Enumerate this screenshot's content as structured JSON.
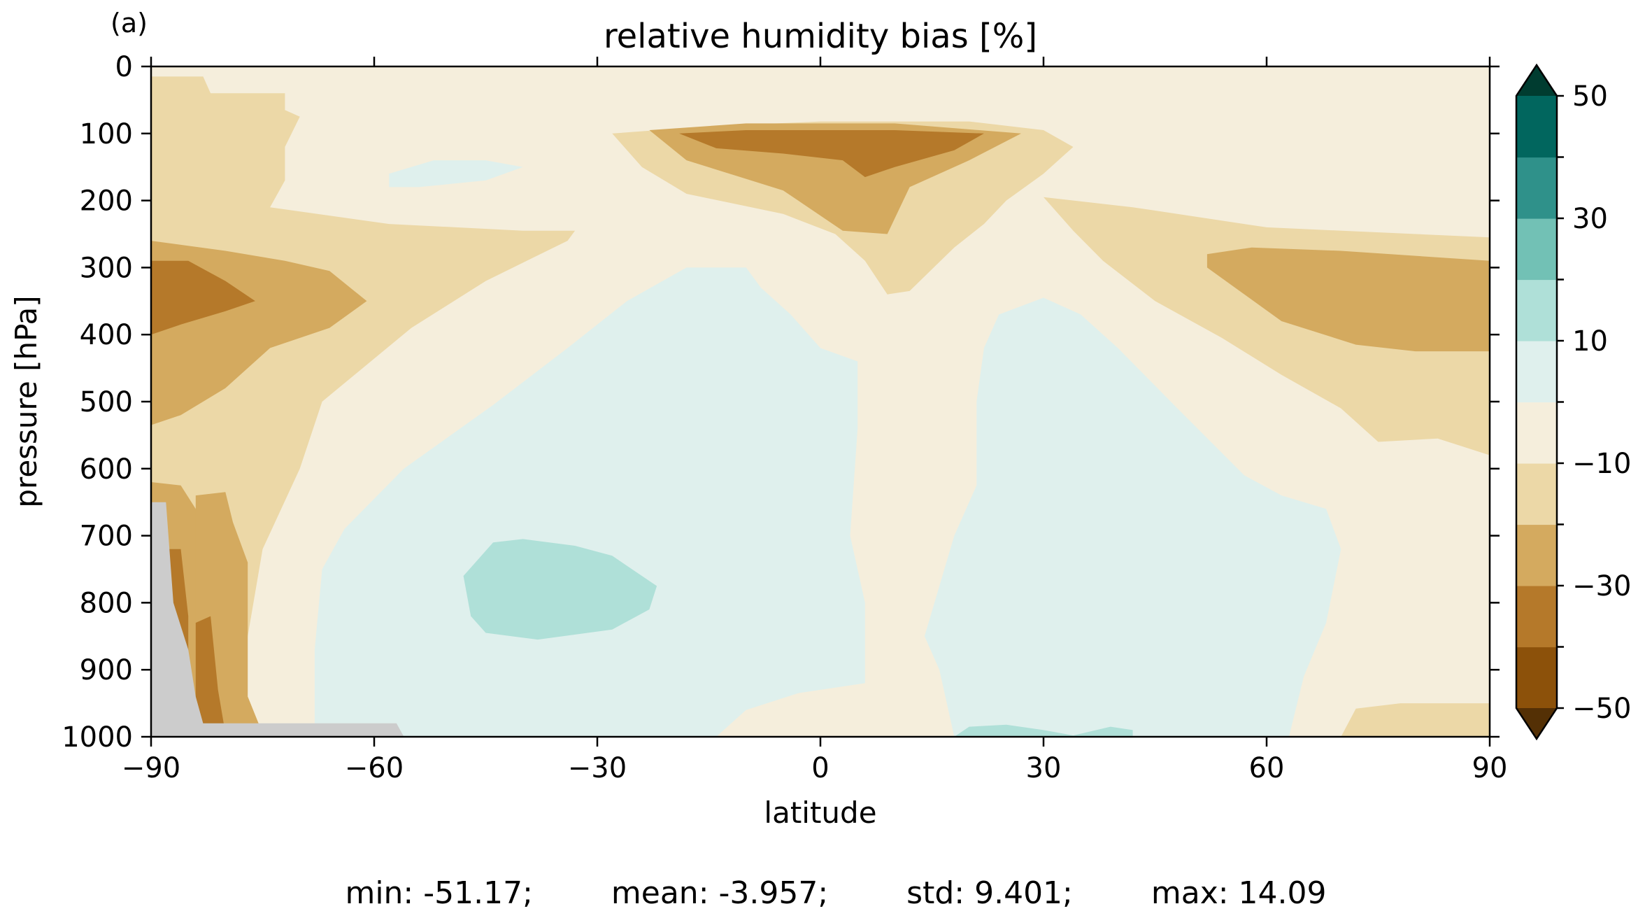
{
  "panel_label": "(a)",
  "chart_data": {
    "type": "contourf",
    "title": "relative humidity bias [%]",
    "xlabel": "latitude",
    "ylabel": "pressure [hPa]",
    "xlim": [
      -90,
      90
    ],
    "ylim": [
      1000,
      0
    ],
    "xticks": [
      "−90",
      "−60",
      "−30",
      "0",
      "30",
      "60",
      "90"
    ],
    "xtick_values": [
      -90,
      -60,
      -30,
      0,
      30,
      60,
      90
    ],
    "yticks": [
      "0",
      "100",
      "200",
      "300",
      "400",
      "500",
      "600",
      "700",
      "800",
      "900",
      "1000"
    ],
    "ytick_values": [
      0,
      100,
      200,
      300,
      400,
      500,
      600,
      700,
      800,
      900,
      1000
    ],
    "colorbar": {
      "levels": [
        -50,
        -40,
        -30,
        -20,
        -10,
        0,
        10,
        20,
        30,
        40,
        50
      ],
      "ticks": [
        "50",
        "30",
        "10",
        "−10",
        "−30",
        "−50"
      ],
      "tick_values": [
        50,
        30,
        10,
        -10,
        -30,
        -50
      ],
      "extend": "both",
      "colors": [
        "#543005",
        "#8c510a",
        "#b5792a",
        "#d4aa5f",
        "#ecd8a7",
        "#f5eedc",
        "#dff0ed",
        "#afe0d8",
        "#72c1b5",
        "#2f918a",
        "#01665e",
        "#003c30"
      ]
    },
    "masked_color": "#cccccc",
    "regions": [
      {
        "level": -20,
        "points": [
          [
            -90,
            15
          ],
          [
            -83,
            15
          ],
          [
            -82,
            40
          ],
          [
            -72,
            40
          ],
          [
            -72,
            65
          ],
          [
            -70,
            75
          ],
          [
            -72,
            120
          ],
          [
            -72,
            170
          ],
          [
            -74,
            210
          ],
          [
            -58,
            235
          ],
          [
            -40,
            245
          ],
          [
            -33,
            245
          ],
          [
            -34,
            260
          ],
          [
            -45,
            320
          ],
          [
            -55,
            390
          ],
          [
            -67,
            500
          ],
          [
            -70,
            600
          ],
          [
            -75,
            720
          ],
          [
            -77,
            850
          ],
          [
            -78,
            995
          ],
          [
            -90,
            995
          ]
        ]
      },
      {
        "level": -20,
        "points": [
          [
            -28,
            100
          ],
          [
            -16,
            90
          ],
          [
            0,
            82
          ],
          [
            20,
            82
          ],
          [
            30,
            95
          ],
          [
            34,
            120
          ],
          [
            30,
            160
          ],
          [
            25,
            200
          ],
          [
            22,
            235
          ],
          [
            18,
            270
          ],
          [
            12,
            335
          ],
          [
            9,
            340
          ],
          [
            6,
            290
          ],
          [
            2,
            250
          ],
          [
            -5,
            220
          ],
          [
            -18,
            190
          ],
          [
            -24,
            150
          ]
        ]
      },
      {
        "level": -20,
        "points": [
          [
            30,
            195
          ],
          [
            42,
            210
          ],
          [
            60,
            240
          ],
          [
            90,
            255
          ],
          [
            90,
            580
          ],
          [
            83,
            555
          ],
          [
            75,
            560
          ],
          [
            70,
            510
          ],
          [
            62,
            460
          ],
          [
            54,
            405
          ],
          [
            45,
            350
          ],
          [
            38,
            290
          ],
          [
            34,
            245
          ]
        ]
      },
      {
        "level": -20,
        "points": [
          [
            72,
            958
          ],
          [
            78,
            950
          ],
          [
            90,
            950
          ],
          [
            90,
            1000
          ],
          [
            70,
            1000
          ]
        ]
      },
      {
        "level": -30,
        "points": [
          [
            -90,
            260
          ],
          [
            -80,
            275
          ],
          [
            -72,
            290
          ],
          [
            -66,
            305
          ],
          [
            -61,
            350
          ],
          [
            -66,
            390
          ],
          [
            -74,
            420
          ],
          [
            -80,
            480
          ],
          [
            -86,
            520
          ],
          [
            -90,
            535
          ]
        ]
      },
      {
        "level": -30,
        "points": [
          [
            -90,
            620
          ],
          [
            -86,
            625
          ],
          [
            -84,
            660
          ],
          [
            -82,
            740
          ],
          [
            -82,
            940
          ],
          [
            -78,
            995
          ],
          [
            -90,
            995
          ]
        ]
      },
      {
        "level": -30,
        "points": [
          [
            -84,
            640
          ],
          [
            -80,
            635
          ],
          [
            -79,
            680
          ],
          [
            -77,
            740
          ],
          [
            -77,
            940
          ],
          [
            -75,
            995
          ],
          [
            -84,
            995
          ]
        ]
      },
      {
        "level": -30,
        "points": [
          [
            -23,
            95
          ],
          [
            -10,
            85
          ],
          [
            10,
            85
          ],
          [
            27,
            100
          ],
          [
            20,
            140
          ],
          [
            12,
            180
          ],
          [
            9,
            250
          ],
          [
            3,
            245
          ],
          [
            -5,
            185
          ],
          [
            -18,
            140
          ]
        ]
      },
      {
        "level": -30,
        "points": [
          [
            52,
            280
          ],
          [
            58,
            270
          ],
          [
            70,
            275
          ],
          [
            90,
            290
          ],
          [
            90,
            425
          ],
          [
            80,
            425
          ],
          [
            72,
            415
          ],
          [
            62,
            380
          ],
          [
            52,
            300
          ]
        ]
      },
      {
        "level": -40,
        "points": [
          [
            -90,
            290
          ],
          [
            -85,
            290
          ],
          [
            -80,
            320
          ],
          [
            -76,
            350
          ],
          [
            -80,
            365
          ],
          [
            -86,
            385
          ],
          [
            -90,
            400
          ]
        ]
      },
      {
        "level": -40,
        "points": [
          [
            -19,
            100
          ],
          [
            -10,
            95
          ],
          [
            10,
            95
          ],
          [
            22,
            100
          ],
          [
            18,
            125
          ],
          [
            10,
            150
          ],
          [
            6,
            165
          ],
          [
            3,
            140
          ],
          [
            -5,
            130
          ],
          [
            -14,
            122
          ]
        ]
      },
      {
        "level": -40,
        "points": [
          [
            -88,
            720
          ],
          [
            -86,
            720
          ],
          [
            -85,
            820
          ],
          [
            -85,
            995
          ],
          [
            -88,
            995
          ]
        ]
      },
      {
        "level": -40,
        "points": [
          [
            -84,
            830
          ],
          [
            -82,
            820
          ],
          [
            -81,
            930
          ],
          [
            -80,
            995
          ],
          [
            -84,
            995
          ]
        ]
      },
      {
        "level": 0,
        "points": [
          [
            -58,
            1000
          ],
          [
            -68,
            1000
          ],
          [
            -68,
            870
          ],
          [
            -67,
            750
          ],
          [
            -64,
            690
          ],
          [
            -56,
            600
          ],
          [
            -44,
            505
          ],
          [
            -34,
            420
          ],
          [
            -26,
            350
          ],
          [
            -18,
            300
          ],
          [
            -10,
            300
          ],
          [
            -8,
            330
          ],
          [
            -4,
            370
          ],
          [
            0,
            420
          ],
          [
            5,
            440
          ],
          [
            5,
            540
          ],
          [
            4,
            700
          ],
          [
            6,
            800
          ],
          [
            6,
            920
          ],
          [
            -3,
            935
          ],
          [
            -10,
            960
          ],
          [
            -14,
            1000
          ]
        ]
      },
      {
        "level": 0,
        "points": [
          [
            18,
            1000
          ],
          [
            16,
            900
          ],
          [
            14,
            850
          ],
          [
            18,
            700
          ],
          [
            21,
            625
          ],
          [
            21,
            500
          ],
          [
            22,
            420
          ],
          [
            24,
            370
          ],
          [
            30,
            345
          ],
          [
            35,
            370
          ],
          [
            40,
            420
          ],
          [
            48,
            510
          ],
          [
            57,
            610
          ],
          [
            62,
            640
          ],
          [
            68,
            660
          ],
          [
            70,
            720
          ],
          [
            68,
            830
          ],
          [
            65,
            910
          ],
          [
            63,
            1000
          ]
        ]
      },
      {
        "level": 0,
        "points": [
          [
            -58,
            160
          ],
          [
            -52,
            140
          ],
          [
            -45,
            140
          ],
          [
            -40,
            150
          ],
          [
            -45,
            170
          ],
          [
            -54,
            180
          ],
          [
            -58,
            180
          ]
        ]
      },
      {
        "level": 10,
        "points": [
          [
            -48,
            760
          ],
          [
            -44,
            710
          ],
          [
            -40,
            705
          ],
          [
            -33,
            715
          ],
          [
            -28,
            730
          ],
          [
            -22,
            775
          ],
          [
            -23,
            810
          ],
          [
            -28,
            840
          ],
          [
            -38,
            855
          ],
          [
            -45,
            845
          ],
          [
            -47,
            820
          ]
        ]
      },
      {
        "level": 10,
        "points": [
          [
            18,
            1000
          ],
          [
            20,
            985
          ],
          [
            25,
            982
          ],
          [
            30,
            990
          ],
          [
            34,
            998
          ],
          [
            39,
            985
          ],
          [
            42,
            990
          ],
          [
            42,
            1000
          ]
        ]
      }
    ],
    "masked_regions": [
      {
        "points": [
          [
            -90,
            650
          ],
          [
            -88,
            650
          ],
          [
            -87,
            800
          ],
          [
            -85,
            870
          ],
          [
            -84,
            940
          ],
          [
            -83,
            980
          ],
          [
            -57,
            980
          ],
          [
            -56,
            1000
          ],
          [
            -90,
            1000
          ]
        ]
      }
    ]
  },
  "stats": {
    "min": "min: -51.17;",
    "mean": "mean: -3.957;",
    "std": "std: 9.401;",
    "max": "max: 14.09"
  }
}
